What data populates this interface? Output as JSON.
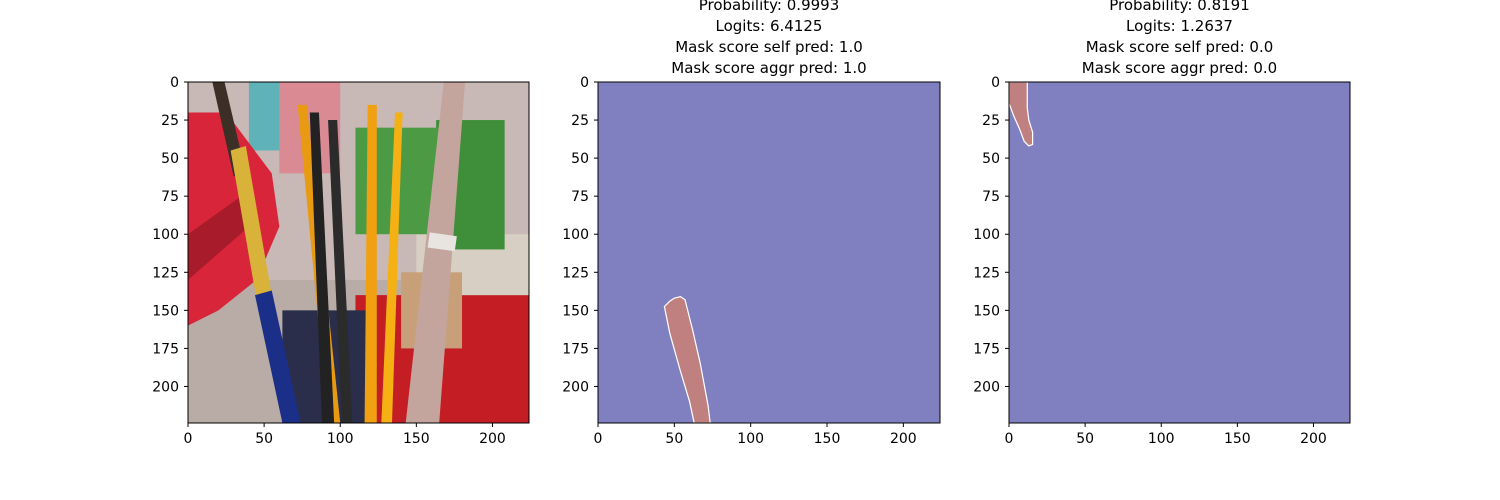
{
  "chart_data": [
    {
      "type": "image",
      "panel": "input-photo",
      "title_lines": [],
      "x_ticks": [
        0,
        50,
        100,
        150,
        200
      ],
      "y_ticks": [
        0,
        25,
        50,
        75,
        100,
        125,
        150,
        175,
        200
      ],
      "xlim": [
        0,
        224
      ],
      "ylim": [
        224,
        0
      ],
      "image_content": "photo of paintbrushes",
      "palette": {
        "wall": "#c9b9b6",
        "chair_red": "#d8253a",
        "floor_red": "#c41d24",
        "green_box": "#3f8f3a",
        "brush_gold": "#d9b23a",
        "brush_blue": "#1c2f88",
        "brush_orange": "#f0a010",
        "brush_silver": "#c3a59e",
        "brush_black": "#222222"
      }
    },
    {
      "type": "mask",
      "panel": "mask-1",
      "title_lines": [
        "Probability: 0.9993",
        "Logits: 6.4125",
        "Mask score self pred: 1.0",
        "Mask score aggr pred: 1.0"
      ],
      "x_ticks": [
        0,
        50,
        100,
        150,
        200
      ],
      "y_ticks": [
        0,
        25,
        50,
        75,
        100,
        125,
        150,
        175,
        200
      ],
      "xlim": [
        0,
        224
      ],
      "ylim": [
        224,
        0
      ],
      "background_color": "#8080c0",
      "mask_color": "#c08080",
      "mask_outline": "#ffffff",
      "mask_polygon": [
        [
          43.5,
          147.5
        ],
        [
          47,
          144
        ],
        [
          50,
          142
        ],
        [
          54,
          141
        ],
        [
          57,
          143
        ],
        [
          62,
          163
        ],
        [
          67,
          185
        ],
        [
          72,
          212
        ],
        [
          73.5,
          224
        ],
        [
          63,
          224
        ],
        [
          60,
          210
        ],
        [
          54,
          190
        ],
        [
          47,
          165
        ]
      ]
    },
    {
      "type": "mask",
      "panel": "mask-2",
      "title_lines": [
        "Probability: 0.8191",
        "Logits: 1.2637",
        "Mask score self pred: 0.0",
        "Mask score aggr pred: 0.0"
      ],
      "x_ticks": [
        0,
        50,
        100,
        150,
        200
      ],
      "y_ticks": [
        0,
        25,
        50,
        75,
        100,
        125,
        150,
        175,
        200
      ],
      "xlim": [
        0,
        224
      ],
      "ylim": [
        224,
        0
      ],
      "background_color": "#8080c0",
      "mask_color": "#c08080",
      "mask_outline": "#ffffff",
      "mask_polygon": [
        [
          0,
          0
        ],
        [
          12,
          0
        ],
        [
          12,
          17
        ],
        [
          13,
          25
        ],
        [
          15.5,
          33
        ],
        [
          15.5,
          41
        ],
        [
          13,
          42
        ],
        [
          10,
          39
        ],
        [
          7,
          31
        ],
        [
          3,
          22
        ],
        [
          0,
          14
        ]
      ]
    }
  ]
}
